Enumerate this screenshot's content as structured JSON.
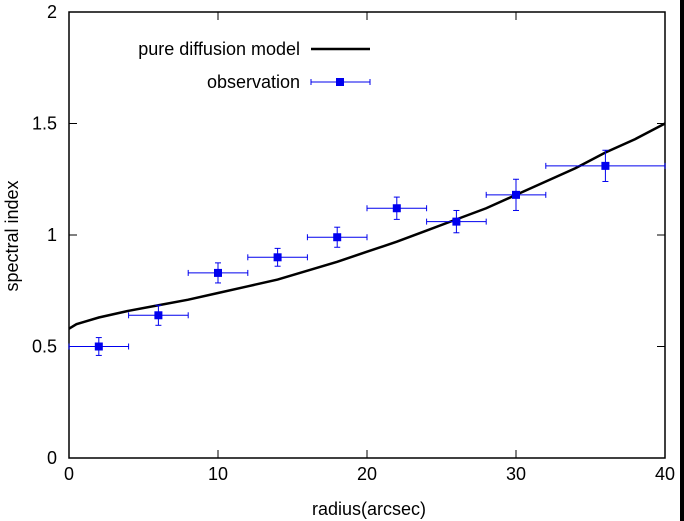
{
  "chart_data": {
    "type": "scatter",
    "title": "",
    "xlabel": "radius(arcsec)",
    "ylabel": "spectral index",
    "xlim": [
      0,
      40
    ],
    "ylim": [
      0,
      2
    ],
    "x_ticks": [
      0,
      10,
      20,
      30,
      40
    ],
    "y_ticks": [
      0,
      0.5,
      1,
      1.5,
      2
    ],
    "x_tick_labels": [
      "0",
      "10",
      "20",
      "30",
      "40"
    ],
    "y_tick_labels": [
      "0",
      "0.5",
      "1",
      "1.5",
      "2"
    ],
    "grid": false,
    "legend_position": "top-left",
    "series": [
      {
        "name": "pure diffusion model",
        "kind": "line",
        "color": "#000000",
        "x": [
          0,
          0.5,
          1,
          2,
          4,
          6,
          8,
          10,
          12,
          14,
          16,
          18,
          20,
          22,
          24,
          26,
          28,
          30,
          32,
          34,
          36,
          38,
          40
        ],
        "y": [
          0.58,
          0.6,
          0.61,
          0.63,
          0.66,
          0.685,
          0.71,
          0.74,
          0.77,
          0.8,
          0.84,
          0.88,
          0.925,
          0.97,
          1.02,
          1.07,
          1.12,
          1.18,
          1.24,
          1.3,
          1.37,
          1.43,
          1.5
        ]
      },
      {
        "name": "observation",
        "kind": "errorbar",
        "color": "#0000ee",
        "x": [
          2,
          6,
          10,
          14,
          18,
          22,
          26,
          30,
          36
        ],
        "y": [
          0.5,
          0.64,
          0.83,
          0.9,
          0.99,
          1.12,
          1.06,
          1.18,
          1.31
        ],
        "xerr": [
          2,
          2,
          2,
          2,
          2,
          2,
          2,
          2,
          4
        ],
        "yerr": [
          0.04,
          0.045,
          0.045,
          0.04,
          0.045,
          0.05,
          0.05,
          0.07,
          0.07
        ]
      }
    ]
  }
}
